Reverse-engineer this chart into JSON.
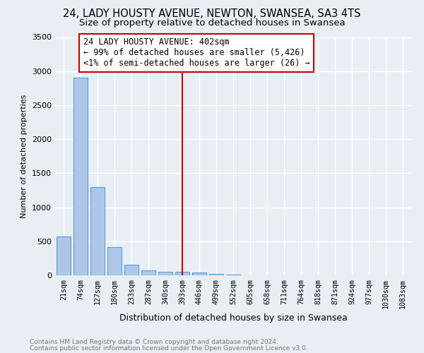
{
  "title": "24, LADY HOUSTY AVENUE, NEWTON, SWANSEA, SA3 4TS",
  "subtitle": "Size of property relative to detached houses in Swansea",
  "xlabel": "Distribution of detached houses by size in Swansea",
  "ylabel": "Number of detached properties",
  "categories": [
    "21sqm",
    "74sqm",
    "127sqm",
    "180sqm",
    "233sqm",
    "287sqm",
    "340sqm",
    "393sqm",
    "446sqm",
    "499sqm",
    "552sqm",
    "605sqm",
    "658sqm",
    "711sqm",
    "764sqm",
    "818sqm",
    "871sqm",
    "924sqm",
    "977sqm",
    "1030sqm",
    "1083sqm"
  ],
  "values": [
    570,
    2900,
    1300,
    415,
    155,
    75,
    50,
    50,
    40,
    25,
    8,
    5,
    3,
    2,
    2,
    1,
    1,
    1,
    0,
    0,
    0
  ],
  "bar_color": "#aec6e8",
  "bar_edge_color": "#5b9bd5",
  "vline_x_index": 7,
  "vline_color": "#cc0000",
  "annotation_line1": "24 LADY HOUSTY AVENUE: 402sqm",
  "annotation_line2": "← 99% of detached houses are smaller (5,426)",
  "annotation_line3": "<1% of semi-detached houses are larger (26) →",
  "annotation_box_color": "#ffffff",
  "annotation_box_edge": "#cc0000",
  "ylim": [
    0,
    3500
  ],
  "yticks": [
    0,
    500,
    1000,
    1500,
    2000,
    2500,
    3000,
    3500
  ],
  "footer1": "Contains HM Land Registry data © Crown copyright and database right 2024.",
  "footer2": "Contains public sector information licensed under the Open Government Licence v3.0.",
  "bg_color": "#e8eef4",
  "grid_color": "#ffffff",
  "title_fontsize": 10.5,
  "subtitle_fontsize": 9.5,
  "footer_fontsize": 6.5,
  "annotation_fontsize": 8.5,
  "ylabel_fontsize": 8,
  "xlabel_fontsize": 9
}
